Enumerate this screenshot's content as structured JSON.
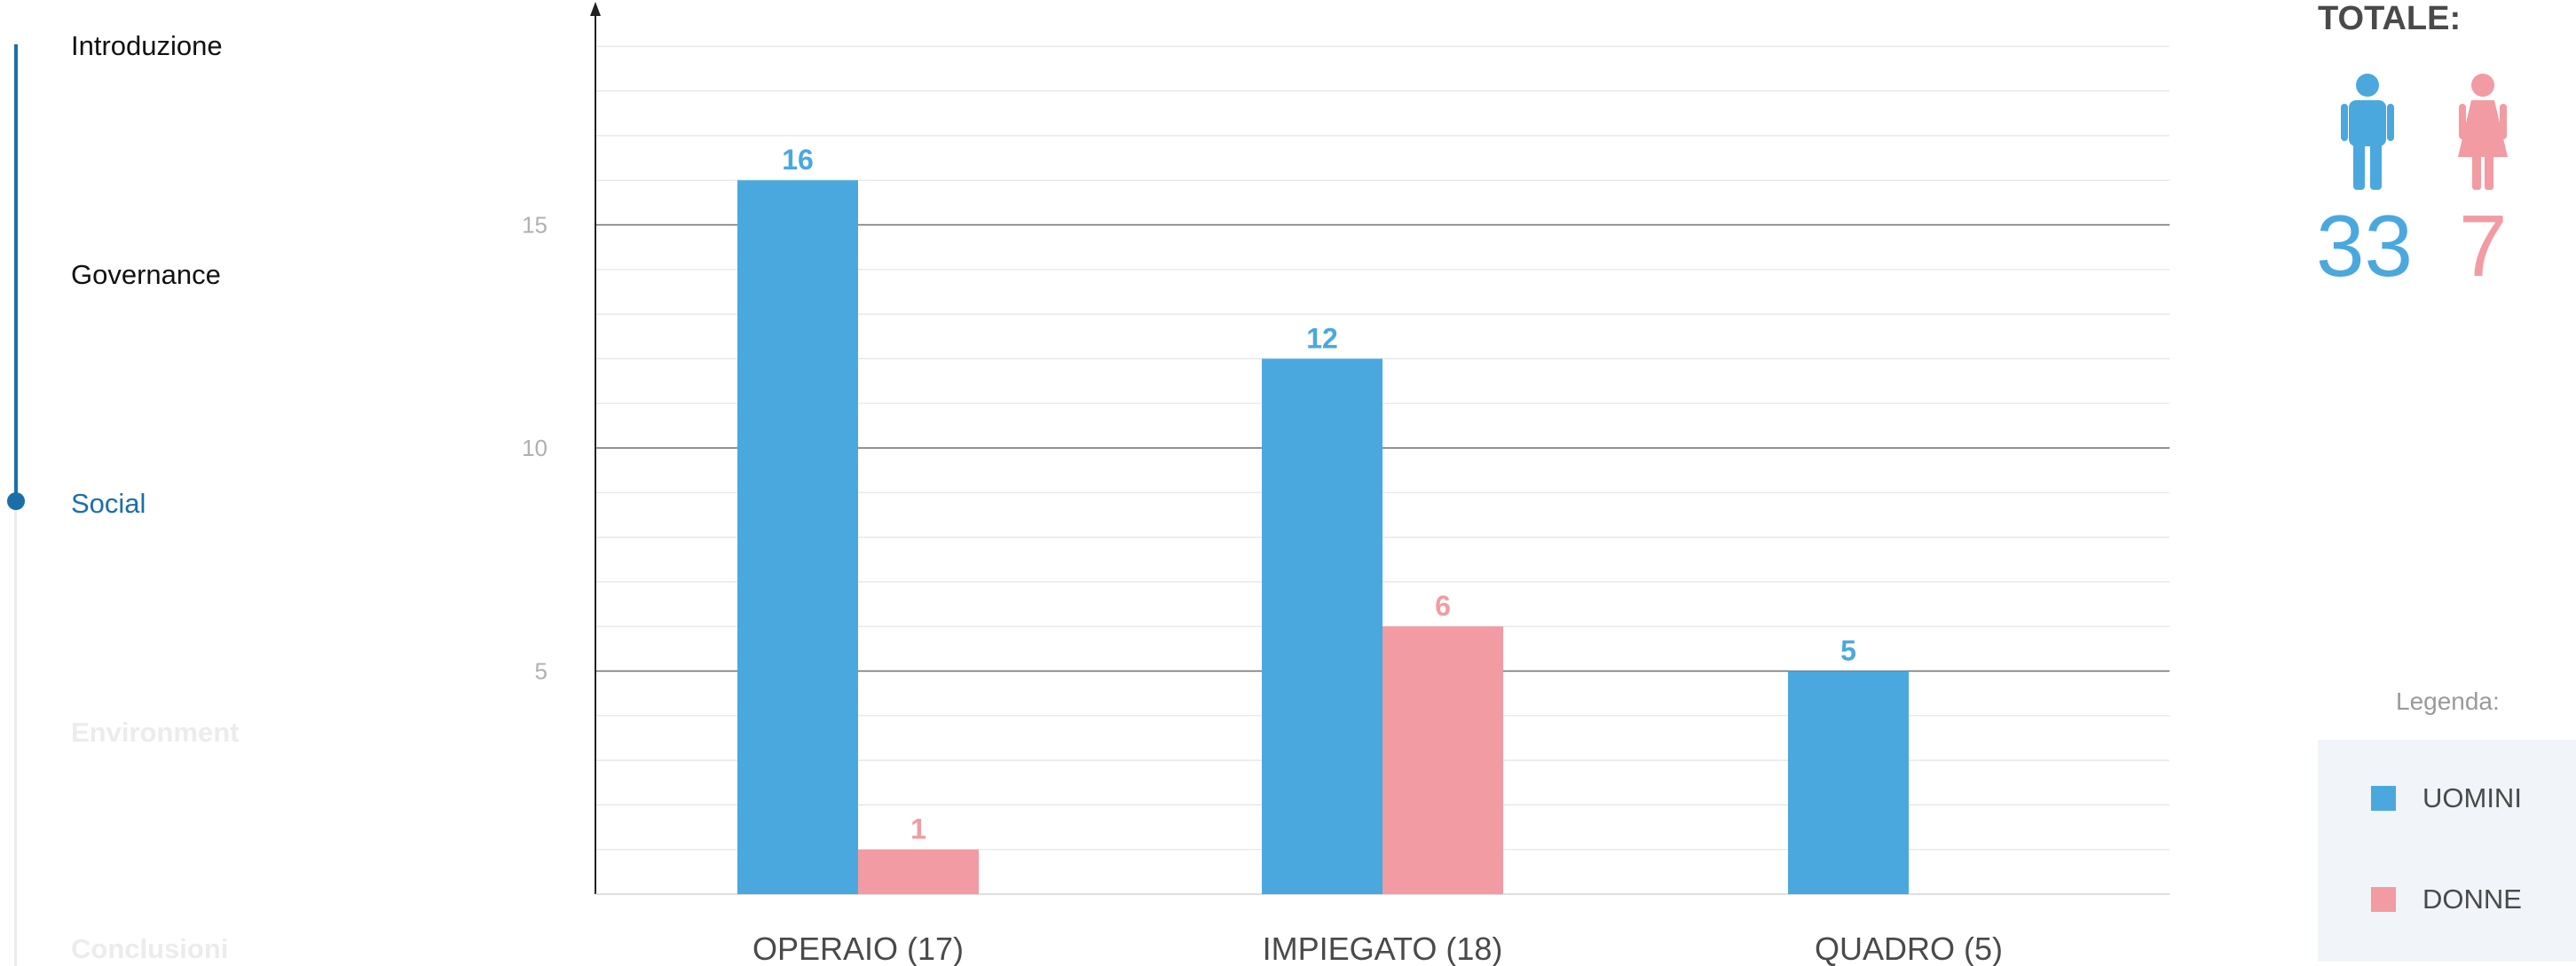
{
  "nav": {
    "items": [
      {
        "label": "Introduzione",
        "state": "done"
      },
      {
        "label": "Governance",
        "state": "done"
      },
      {
        "label": "Social",
        "state": "active"
      },
      {
        "label": "Environment",
        "state": "todo"
      },
      {
        "label": "Conclusioni",
        "state": "todo"
      }
    ]
  },
  "totale": {
    "title": "TOTALE:",
    "men": {
      "icon": "man-icon",
      "value": "33",
      "color": "#4aa8df"
    },
    "women": {
      "icon": "woman-icon",
      "value": "7",
      "color": "#f29ba3"
    }
  },
  "legend": {
    "title": "Legenda:",
    "items": [
      {
        "label": "UOMINI",
        "color": "#4aa8df"
      },
      {
        "label": "DONNE",
        "color": "#f29ba3"
      }
    ]
  },
  "chart_data": {
    "type": "bar",
    "categories": [
      "OPERAIO (17)",
      "IMPIEGATO (18)",
      "QUADRO (5)"
    ],
    "series": [
      {
        "name": "UOMINI",
        "values": [
          16,
          12,
          5
        ],
        "color": "#4aa8df"
      },
      {
        "name": "DONNE",
        "values": [
          1,
          6,
          0
        ],
        "color": "#f29ba3"
      }
    ],
    "yticks": [
      5,
      10,
      15
    ],
    "ylim": [
      0,
      20
    ],
    "grid": true
  }
}
